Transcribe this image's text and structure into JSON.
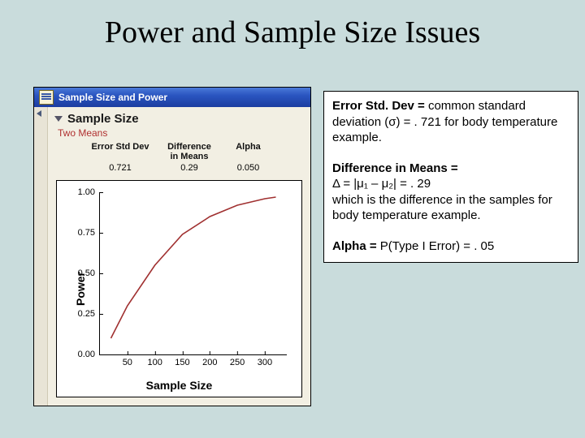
{
  "title": "Power and Sample Size Issues",
  "window": {
    "title": "Sample Size and Power",
    "section_title": "Sample Size",
    "subtitle": "Two Means",
    "params": {
      "headers": [
        "Error Std Dev",
        "Difference\nin Means",
        "Alpha"
      ],
      "values": [
        "0.721",
        "0.29",
        "0.050"
      ]
    }
  },
  "chart": {
    "type": "line",
    "x": [
      20,
      50,
      100,
      150,
      200,
      250,
      300,
      320
    ],
    "y": [
      0.1,
      0.3,
      0.55,
      0.74,
      0.85,
      0.92,
      0.96,
      0.97
    ],
    "line_color": "#a03030",
    "line_width": 1.6,
    "background": "#ffffff",
    "xlabel": "Sample Size",
    "ylabel": "Power",
    "xlim": [
      0,
      340
    ],
    "ylim": [
      0,
      1.0
    ],
    "xticks": [
      50,
      100,
      150,
      200,
      250,
      300
    ],
    "yticks": [
      0.0,
      0.25,
      0.5,
      0.75,
      1.0
    ],
    "ytick_labels": [
      "0.00",
      "0.25",
      "0.50",
      "0.75",
      "1.00"
    ],
    "label_fontsize": 14,
    "tick_fontsize": 11
  },
  "explain": {
    "err_bold": "Error Std. Dev = ",
    "err_rest": "common standard deviation (σ) = . 721 for body temperature example.",
    "diff_bold": "Difference in Means = ",
    "diff_line2": "Δ = |μ₁ – μ₂| = . 29",
    "diff_rest": "which is the difference in the samples for body temperature example.",
    "alpha_bold": "Alpha = ",
    "alpha_rest": "P(Type I Error) = . 05"
  }
}
